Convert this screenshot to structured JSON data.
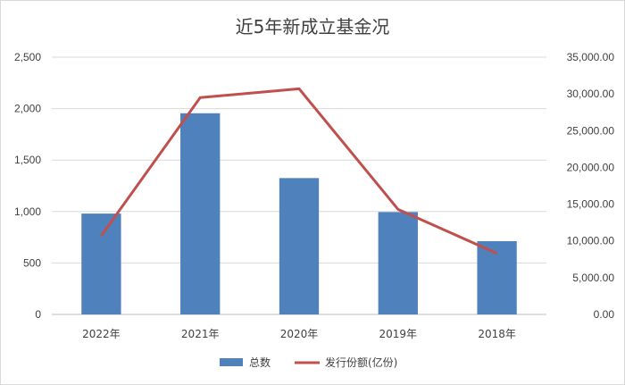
{
  "chart_data": {
    "type": "bar",
    "title": "近5年新成立基金况",
    "categories": [
      "2022年",
      "2021年",
      "2020年",
      "2019年",
      "2018年"
    ],
    "series": [
      {
        "name": "总数",
        "type": "bar",
        "axis": "left",
        "color": "#4f81bd",
        "values": [
          980,
          1955,
          1325,
          995,
          712
        ]
      },
      {
        "name": "发行份额(亿份)",
        "type": "line",
        "axis": "right",
        "color": "#c0504d",
        "values": [
          10700,
          29500,
          30700,
          14300,
          8300
        ]
      }
    ],
    "y_left": {
      "min": 0,
      "max": 2500,
      "step": 500,
      "tick_labels": [
        "0",
        "500",
        "1,000",
        "1,500",
        "2,000",
        "2,500"
      ]
    },
    "y_right": {
      "min": 0,
      "max": 35000,
      "step": 5000,
      "tick_labels": [
        "0.00",
        "5,000.00",
        "10,000.00",
        "15,000.00",
        "20,000.00",
        "25,000.00",
        "30,000.00",
        "35,000.00"
      ]
    },
    "grid": true,
    "legend_position": "bottom"
  }
}
